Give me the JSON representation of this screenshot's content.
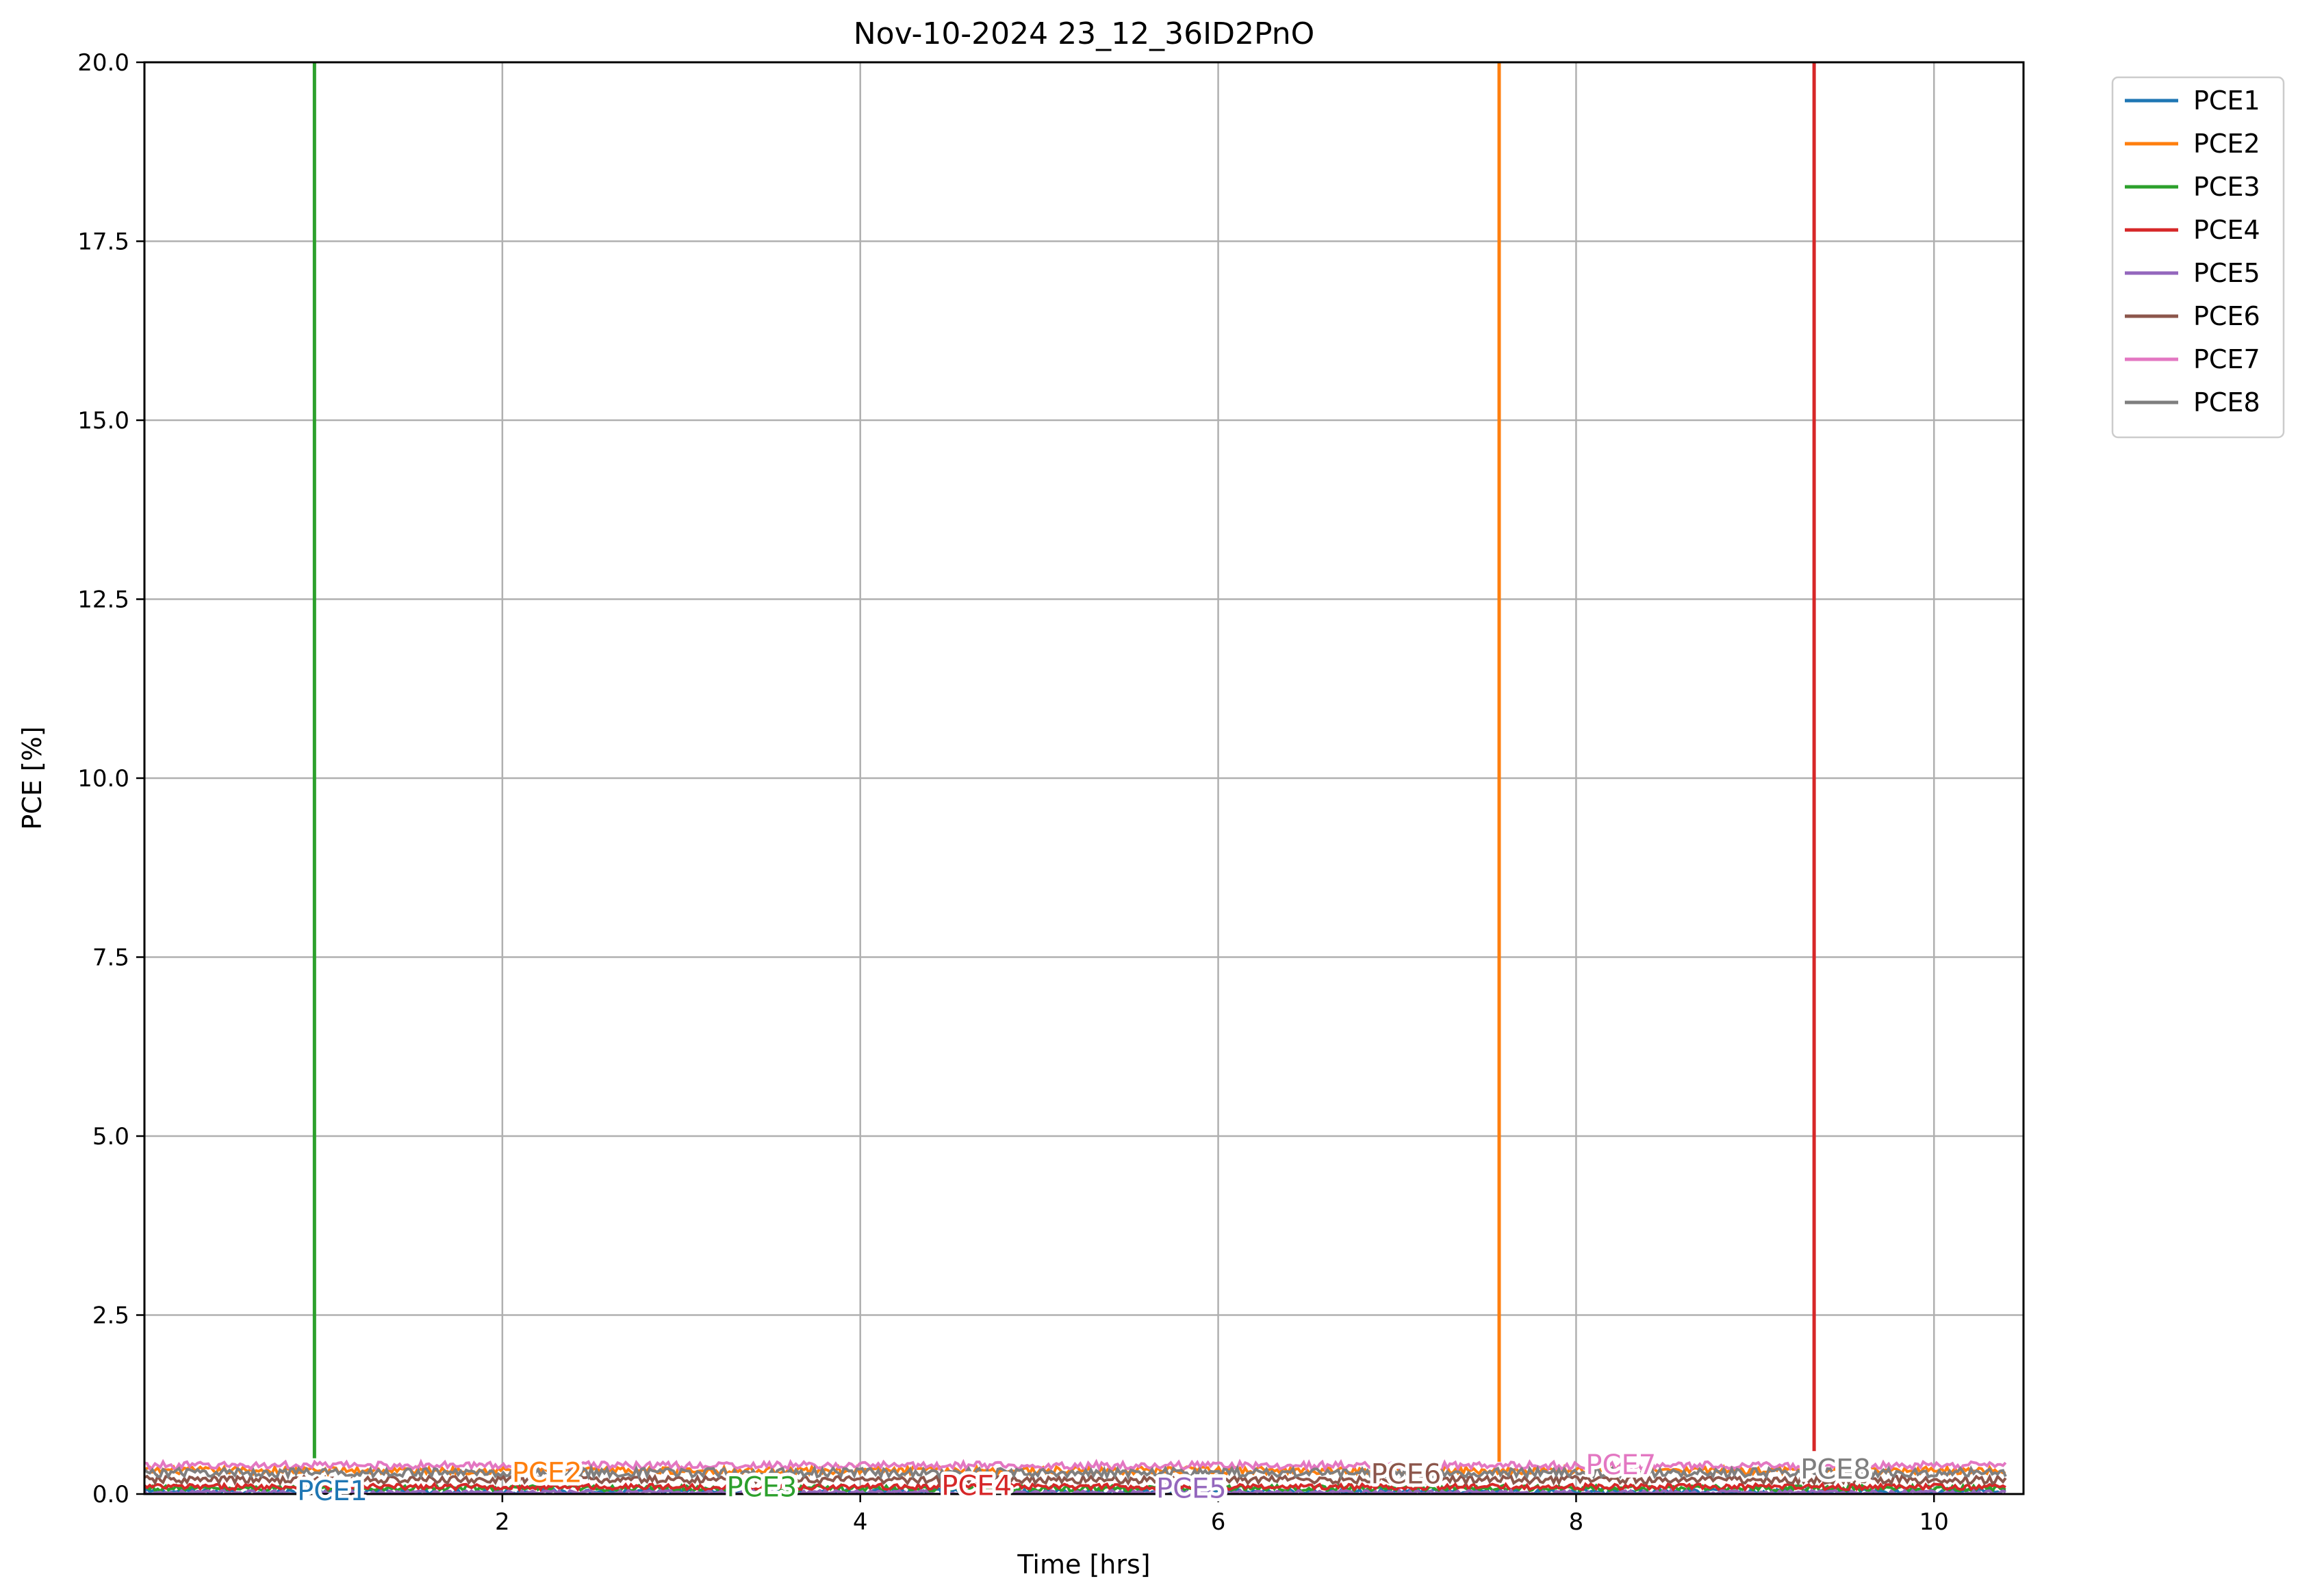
{
  "chart_data": {
    "type": "line",
    "title": "Nov-10-2024 23_12_36ID2PnO",
    "xlabel": "Time [hrs]",
    "ylabel": "PCE [%]",
    "xlim": [
      0.0,
      10.5
    ],
    "ylim": [
      0.0,
      20.0
    ],
    "x_ticks": [
      2,
      4,
      6,
      8,
      10
    ],
    "y_ticks": [
      0.0,
      2.5,
      5.0,
      7.5,
      10.0,
      12.5,
      15.0,
      17.5,
      20.0
    ],
    "x_tick_labels": [
      "2",
      "4",
      "6",
      "8",
      "10"
    ],
    "y_tick_labels": [
      "0.0",
      "2.5",
      "5.0",
      "7.5",
      "10.0",
      "12.5",
      "15.0",
      "17.5",
      "20.0"
    ],
    "grid": true,
    "legend_position": "outside-top-right",
    "x_range_data": [
      0.0,
      10.4
    ],
    "series": [
      {
        "name": "PCE1",
        "color": "#1f77b4",
        "baseline": 0.03,
        "noise": 0.04,
        "label_x": 1.05,
        "label_y": 0.05,
        "spike": null
      },
      {
        "name": "PCE2",
        "color": "#ff7f0e",
        "baseline": 0.33,
        "noise": 0.05,
        "label_x": 2.25,
        "label_y": 0.3,
        "spike": {
          "x": 7.57,
          "y_from": 0.45,
          "y_to": 20.0
        }
      },
      {
        "name": "PCE3",
        "color": "#2ca02c",
        "baseline": 0.08,
        "noise": 0.04,
        "label_x": 3.45,
        "label_y": 0.1,
        "spike": {
          "x": 0.95,
          "y_from": 0.5,
          "y_to": 20.0
        }
      },
      {
        "name": "PCE4",
        "color": "#d62728",
        "baseline": 0.1,
        "noise": 0.04,
        "label_x": 4.65,
        "label_y": 0.12,
        "spike": {
          "x": 9.33,
          "y_from": 0.6,
          "y_to": 20.0
        }
      },
      {
        "name": "PCE5",
        "color": "#9467bd",
        "baseline": 0.02,
        "noise": 0.03,
        "label_x": 5.85,
        "label_y": 0.08,
        "spike": null
      },
      {
        "name": "PCE6",
        "color": "#8c564b",
        "baseline": 0.2,
        "noise": 0.05,
        "label_x": 7.05,
        "label_y": 0.28,
        "spike": null
      },
      {
        "name": "PCE7",
        "color": "#e377c2",
        "baseline": 0.4,
        "noise": 0.05,
        "label_x": 8.25,
        "label_y": 0.41,
        "spike": null
      },
      {
        "name": "PCE8",
        "color": "#7f7f7f",
        "baseline": 0.3,
        "noise": 0.06,
        "label_x": 9.45,
        "label_y": 0.35,
        "spike": null
      }
    ]
  }
}
